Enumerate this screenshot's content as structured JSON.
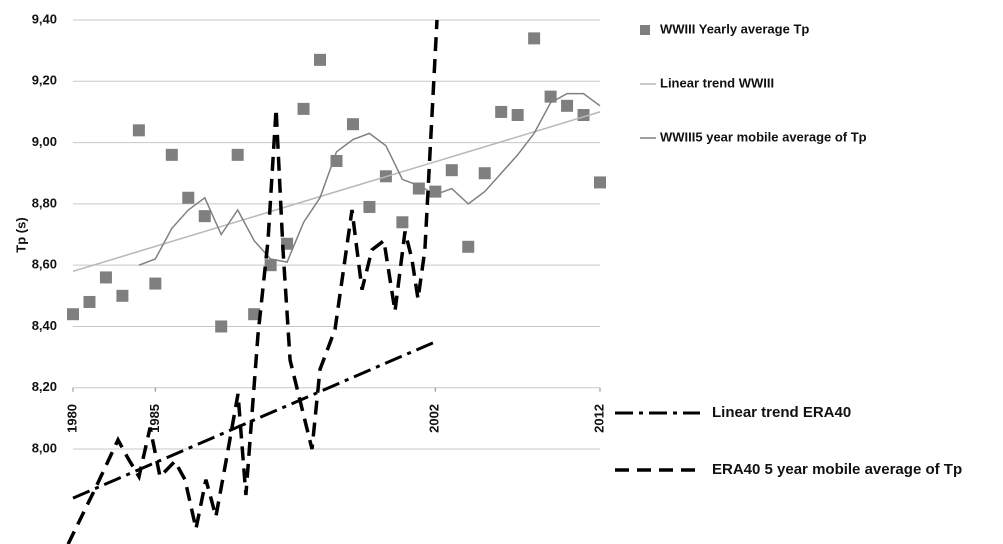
{
  "chart_data": {
    "type": "line",
    "ylabel": "Tp (s)",
    "xlim": [
      1980,
      2012
    ],
    "xticks": [
      1980,
      1985,
      2002,
      2012
    ],
    "ylim": [
      7.7,
      9.4
    ],
    "yticks": [
      {
        "value": 8.0,
        "label": "8,00"
      },
      {
        "value": 8.2,
        "label": "8,20"
      },
      {
        "value": 8.4,
        "label": "8,40"
      },
      {
        "value": 8.6,
        "label": "8,60"
      },
      {
        "value": 8.8,
        "label": "8,80"
      },
      {
        "value": 9.0,
        "label": "9,00"
      },
      {
        "value": 9.2,
        "label": "9,20"
      },
      {
        "value": 9.4,
        "label": "9,40"
      }
    ],
    "grid": true,
    "series": [
      {
        "name": "WWIII Yearly average Tp",
        "color": "#7f7f7f",
        "marker": "square",
        "line": "none",
        "x": [
          1980,
          1981,
          1982,
          1983,
          1984,
          1985,
          1986,
          1987,
          1988,
          1989,
          1990,
          1991,
          1992,
          1993,
          1994,
          1995,
          1996,
          1997,
          1998,
          1999,
          2000,
          2001,
          2002,
          2003,
          2004,
          2005,
          2006,
          2007,
          2008,
          2009,
          2010,
          2011,
          2012
        ],
        "values": [
          8.44,
          8.48,
          8.56,
          8.5,
          9.04,
          8.54,
          8.96,
          8.82,
          8.76,
          8.4,
          8.96,
          8.44,
          8.6,
          8.67,
          9.11,
          9.27,
          8.94,
          9.06,
          8.79,
          8.89,
          8.74,
          8.85,
          8.84,
          8.91,
          8.66,
          8.9,
          9.1,
          9.09,
          9.34,
          9.15,
          9.12,
          9.09,
          8.87
        ]
      },
      {
        "name": "Linear trend WWIII",
        "color": "#b8b8b8",
        "marker": "none",
        "line": "solid",
        "x": [
          1980,
          2012
        ],
        "values": [
          8.58,
          9.1
        ]
      },
      {
        "name": "WWIII5 year mobile average  of Tp",
        "color": "#808080",
        "marker": "none",
        "line": "solid",
        "x": [
          1984,
          1985,
          1986,
          1987,
          1988,
          1989,
          1990,
          1991,
          1992,
          1993,
          1994,
          1995,
          1996,
          1997,
          1998,
          1999,
          2000,
          2001,
          2002,
          2003,
          2004,
          2005,
          2006,
          2007,
          2008,
          2009,
          2010,
          2011,
          2012
        ],
        "values": [
          8.6,
          8.62,
          8.72,
          8.78,
          8.82,
          8.7,
          8.78,
          8.68,
          8.62,
          8.61,
          8.74,
          8.82,
          8.97,
          9.01,
          9.03,
          8.99,
          8.88,
          8.86,
          8.83,
          8.85,
          8.8,
          8.84,
          8.9,
          8.96,
          9.03,
          9.13,
          9.16,
          9.16,
          9.12
        ]
      },
      {
        "name": "Linear trend ERA40",
        "color": "#000000",
        "marker": "none",
        "line": "dashdot",
        "x": [
          1980,
          2002
        ],
        "values": [
          7.84,
          8.35
        ]
      },
      {
        "name": "ERA40 5 year mobile average  of Tp",
        "color": "#000000",
        "marker": "none",
        "line": "dash",
        "x": [
          1979.7,
          1981.34,
          1982.73,
          1983.34,
          1984.01,
          1984.68,
          1985.28,
          1986.19,
          1986.8,
          1987.47,
          1988.07,
          1988.68,
          1989.29,
          1990.02,
          1990.5,
          1991.23,
          1991.84,
          1992.33,
          1992.75,
          1993.18,
          1993.78,
          1994.51,
          1995.0,
          1995.91,
          1996.94,
          1997.55,
          1998.15,
          1998.88,
          1999.55,
          2000.16,
          2000.58,
          2000.95,
          2001.37,
          2002.1
        ],
        "values": [
          7.69,
          7.87,
          8.03,
          7.97,
          7.91,
          8.07,
          7.91,
          7.96,
          7.9,
          7.74,
          7.9,
          7.78,
          7.96,
          8.18,
          7.85,
          8.37,
          8.68,
          9.11,
          8.65,
          8.29,
          8.16,
          8.0,
          8.26,
          8.39,
          8.78,
          8.52,
          8.65,
          8.68,
          8.45,
          8.71,
          8.62,
          8.49,
          8.65,
          9.4
        ]
      }
    ]
  }
}
